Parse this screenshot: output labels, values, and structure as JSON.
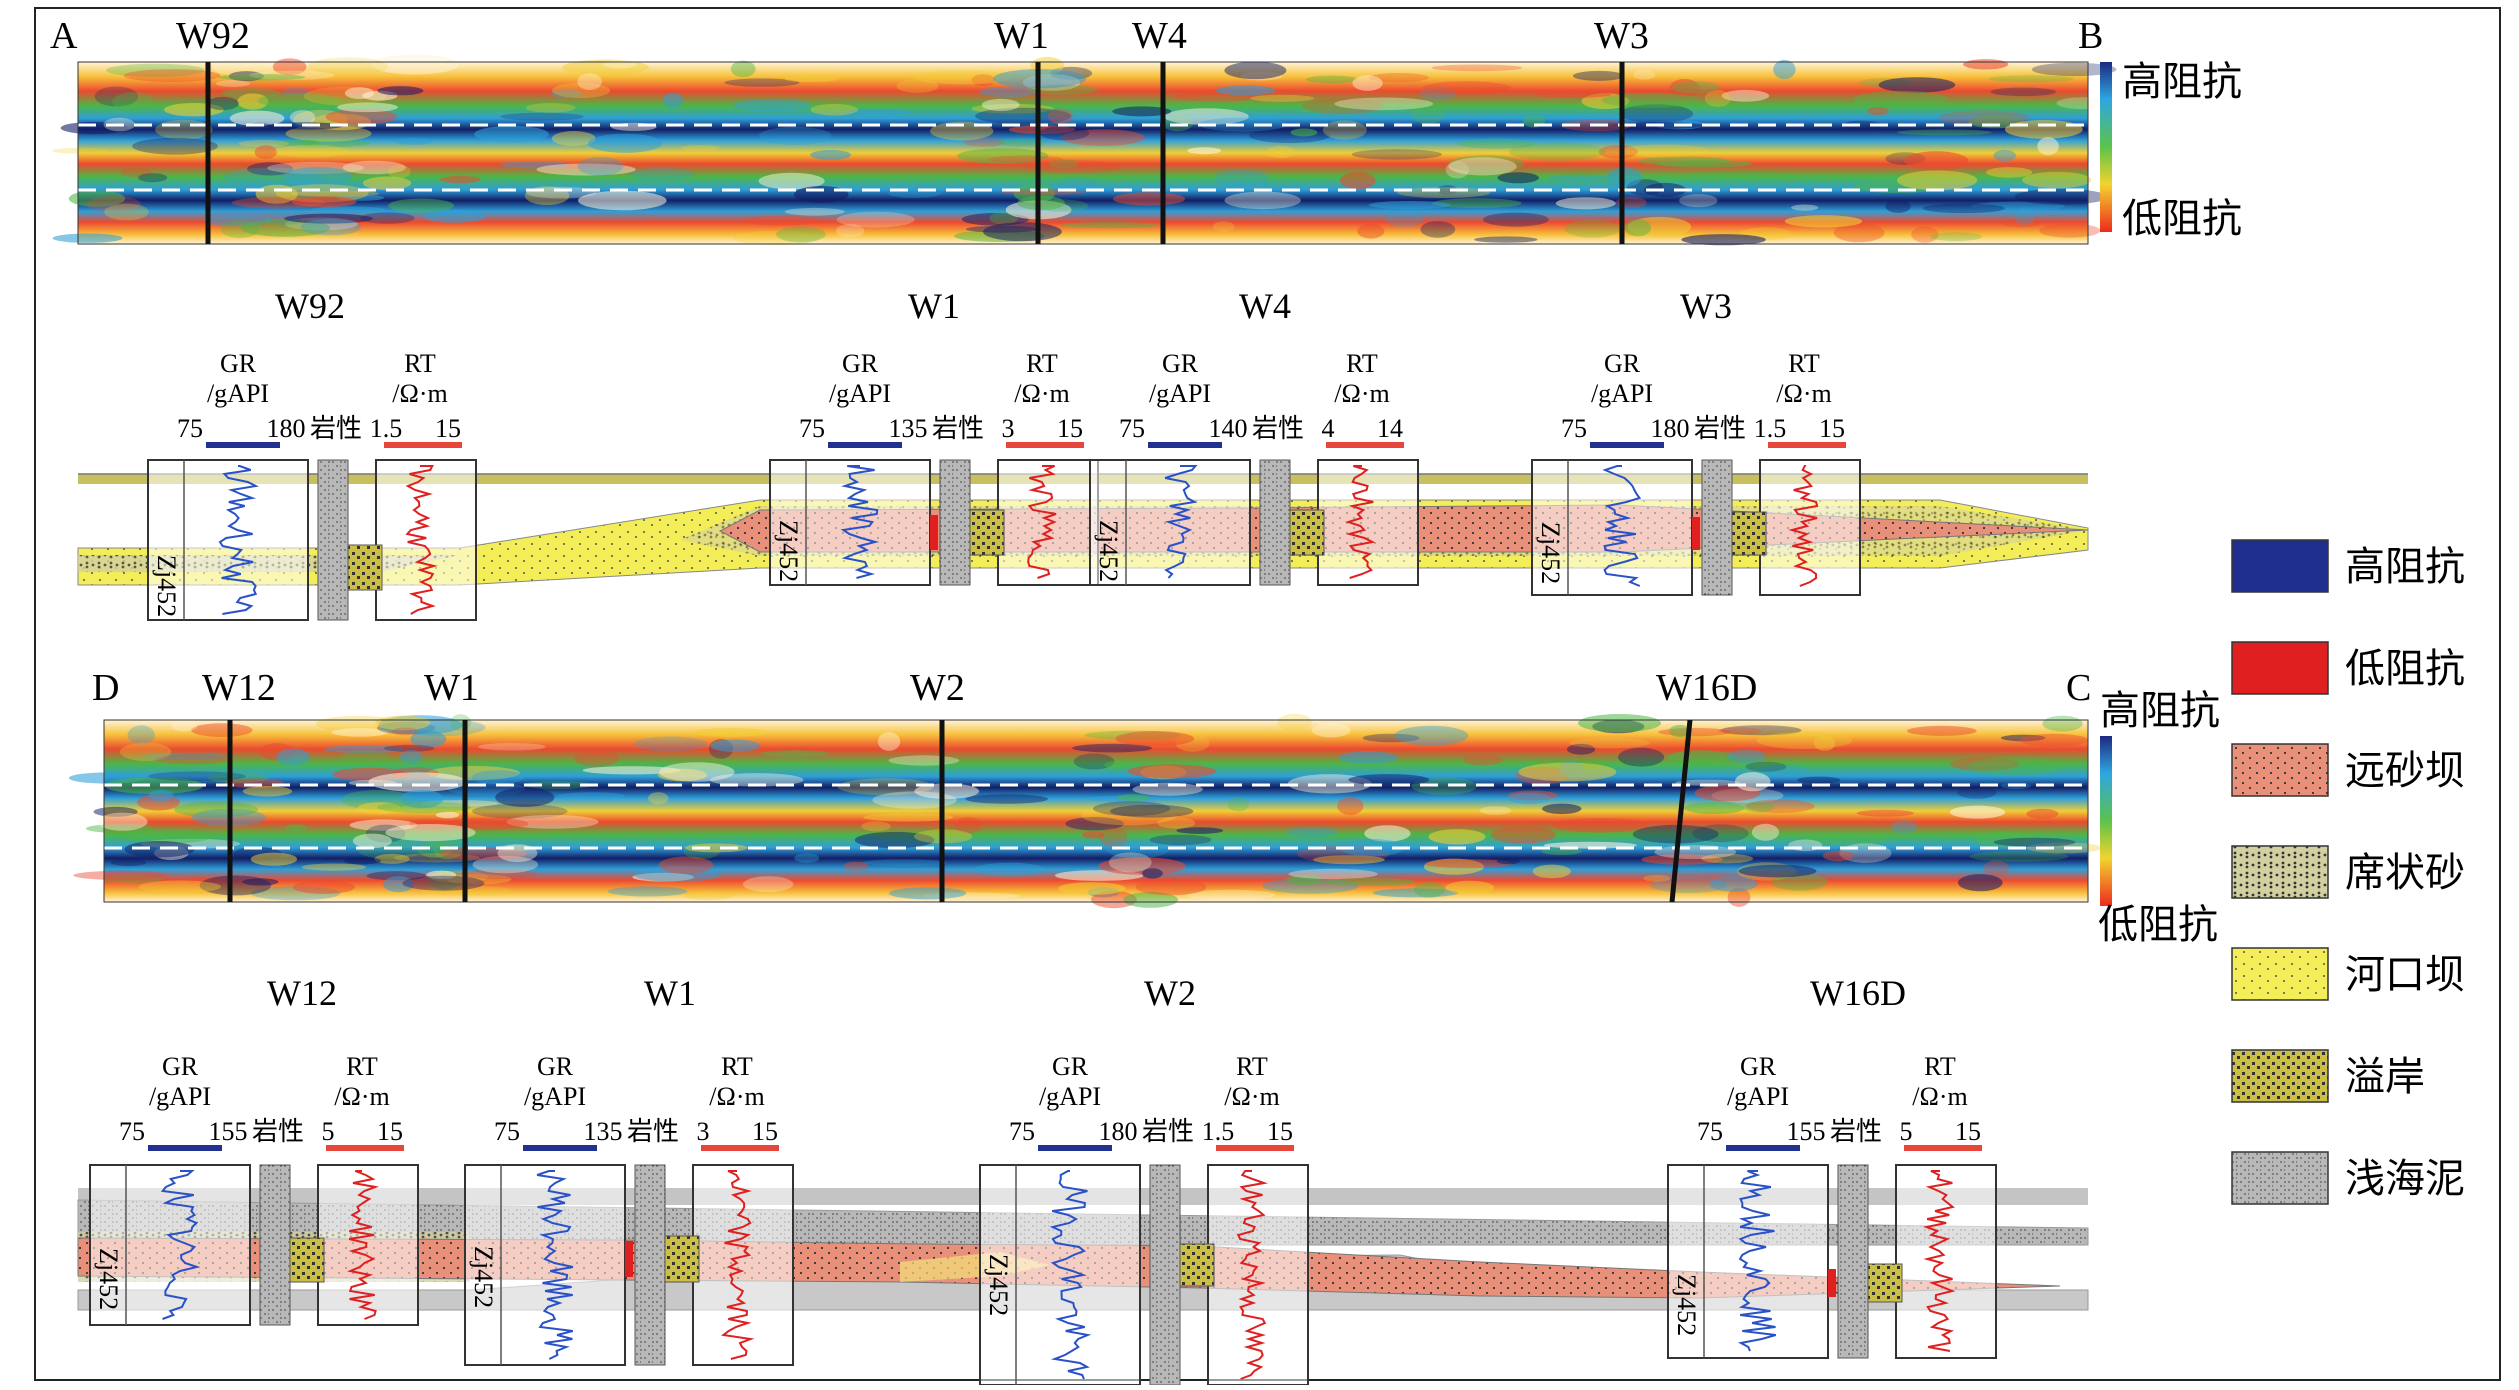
{
  "panel_top": {
    "corner_left": "A",
    "corner_right": "B",
    "seismic_wells": [
      "W92",
      "W1",
      "W4",
      "W3"
    ],
    "scale_high": "高阻抗",
    "scale_low": "低阻抗",
    "wells": [
      {
        "name": "W92",
        "gr_min": "75",
        "gr_max": "180",
        "rt_min": "1.5",
        "rt_max": "15"
      },
      {
        "name": "W1",
        "gr_min": "75",
        "gr_max": "135",
        "rt_min": "3",
        "rt_max": "15"
      },
      {
        "name": "W4",
        "gr_min": "75",
        "gr_max": "140",
        "rt_min": "4",
        "rt_max": "14"
      },
      {
        "name": "W3",
        "gr_min": "75",
        "gr_max": "180",
        "rt_min": "1.5",
        "rt_max": "15"
      }
    ]
  },
  "panel_bottom": {
    "corner_left": "D",
    "corner_right": "C",
    "seismic_wells": [
      "W12",
      "W1",
      "W2",
      "W16D"
    ],
    "scale_high": "高阻抗",
    "scale_low": "低阻抗",
    "wells": [
      {
        "name": "W12",
        "gr_min": "75",
        "gr_max": "155",
        "rt_min": "5",
        "rt_max": "15"
      },
      {
        "name": "W1",
        "gr_min": "75",
        "gr_max": "135",
        "rt_min": "3",
        "rt_max": "15"
      },
      {
        "name": "W2",
        "gr_min": "75",
        "gr_max": "180",
        "rt_min": "1.5",
        "rt_max": "15"
      },
      {
        "name": "W16D",
        "gr_min": "75",
        "gr_max": "155",
        "rt_min": "5",
        "rt_max": "15"
      }
    ]
  },
  "log_labels": {
    "gr": "GR",
    "gr_unit": "/gAPI",
    "rt": "RT",
    "rt_unit": "/Ω·m",
    "lithology": "岩性",
    "marker": "Zj452"
  },
  "legend": [
    {
      "label": "高阻抗",
      "color": "#1f2f8f"
    },
    {
      "label": "低阻抗",
      "color": "#e02020"
    },
    {
      "label": "远砂坝",
      "color": "#e9907a"
    },
    {
      "label": "席状砂",
      "color": "#d2cfa0"
    },
    {
      "label": "河口坝",
      "color": "#f3ee58"
    },
    {
      "label": "溢岸",
      "color": "#cbbf45"
    },
    {
      "label": "浅海泥",
      "color": "#b8b8b8"
    }
  ],
  "colors": {
    "gr_bar": "#22318f",
    "rt_bar": "#e8463a",
    "gr_curve": "#2a52c8",
    "rt_curve": "#e02020"
  }
}
